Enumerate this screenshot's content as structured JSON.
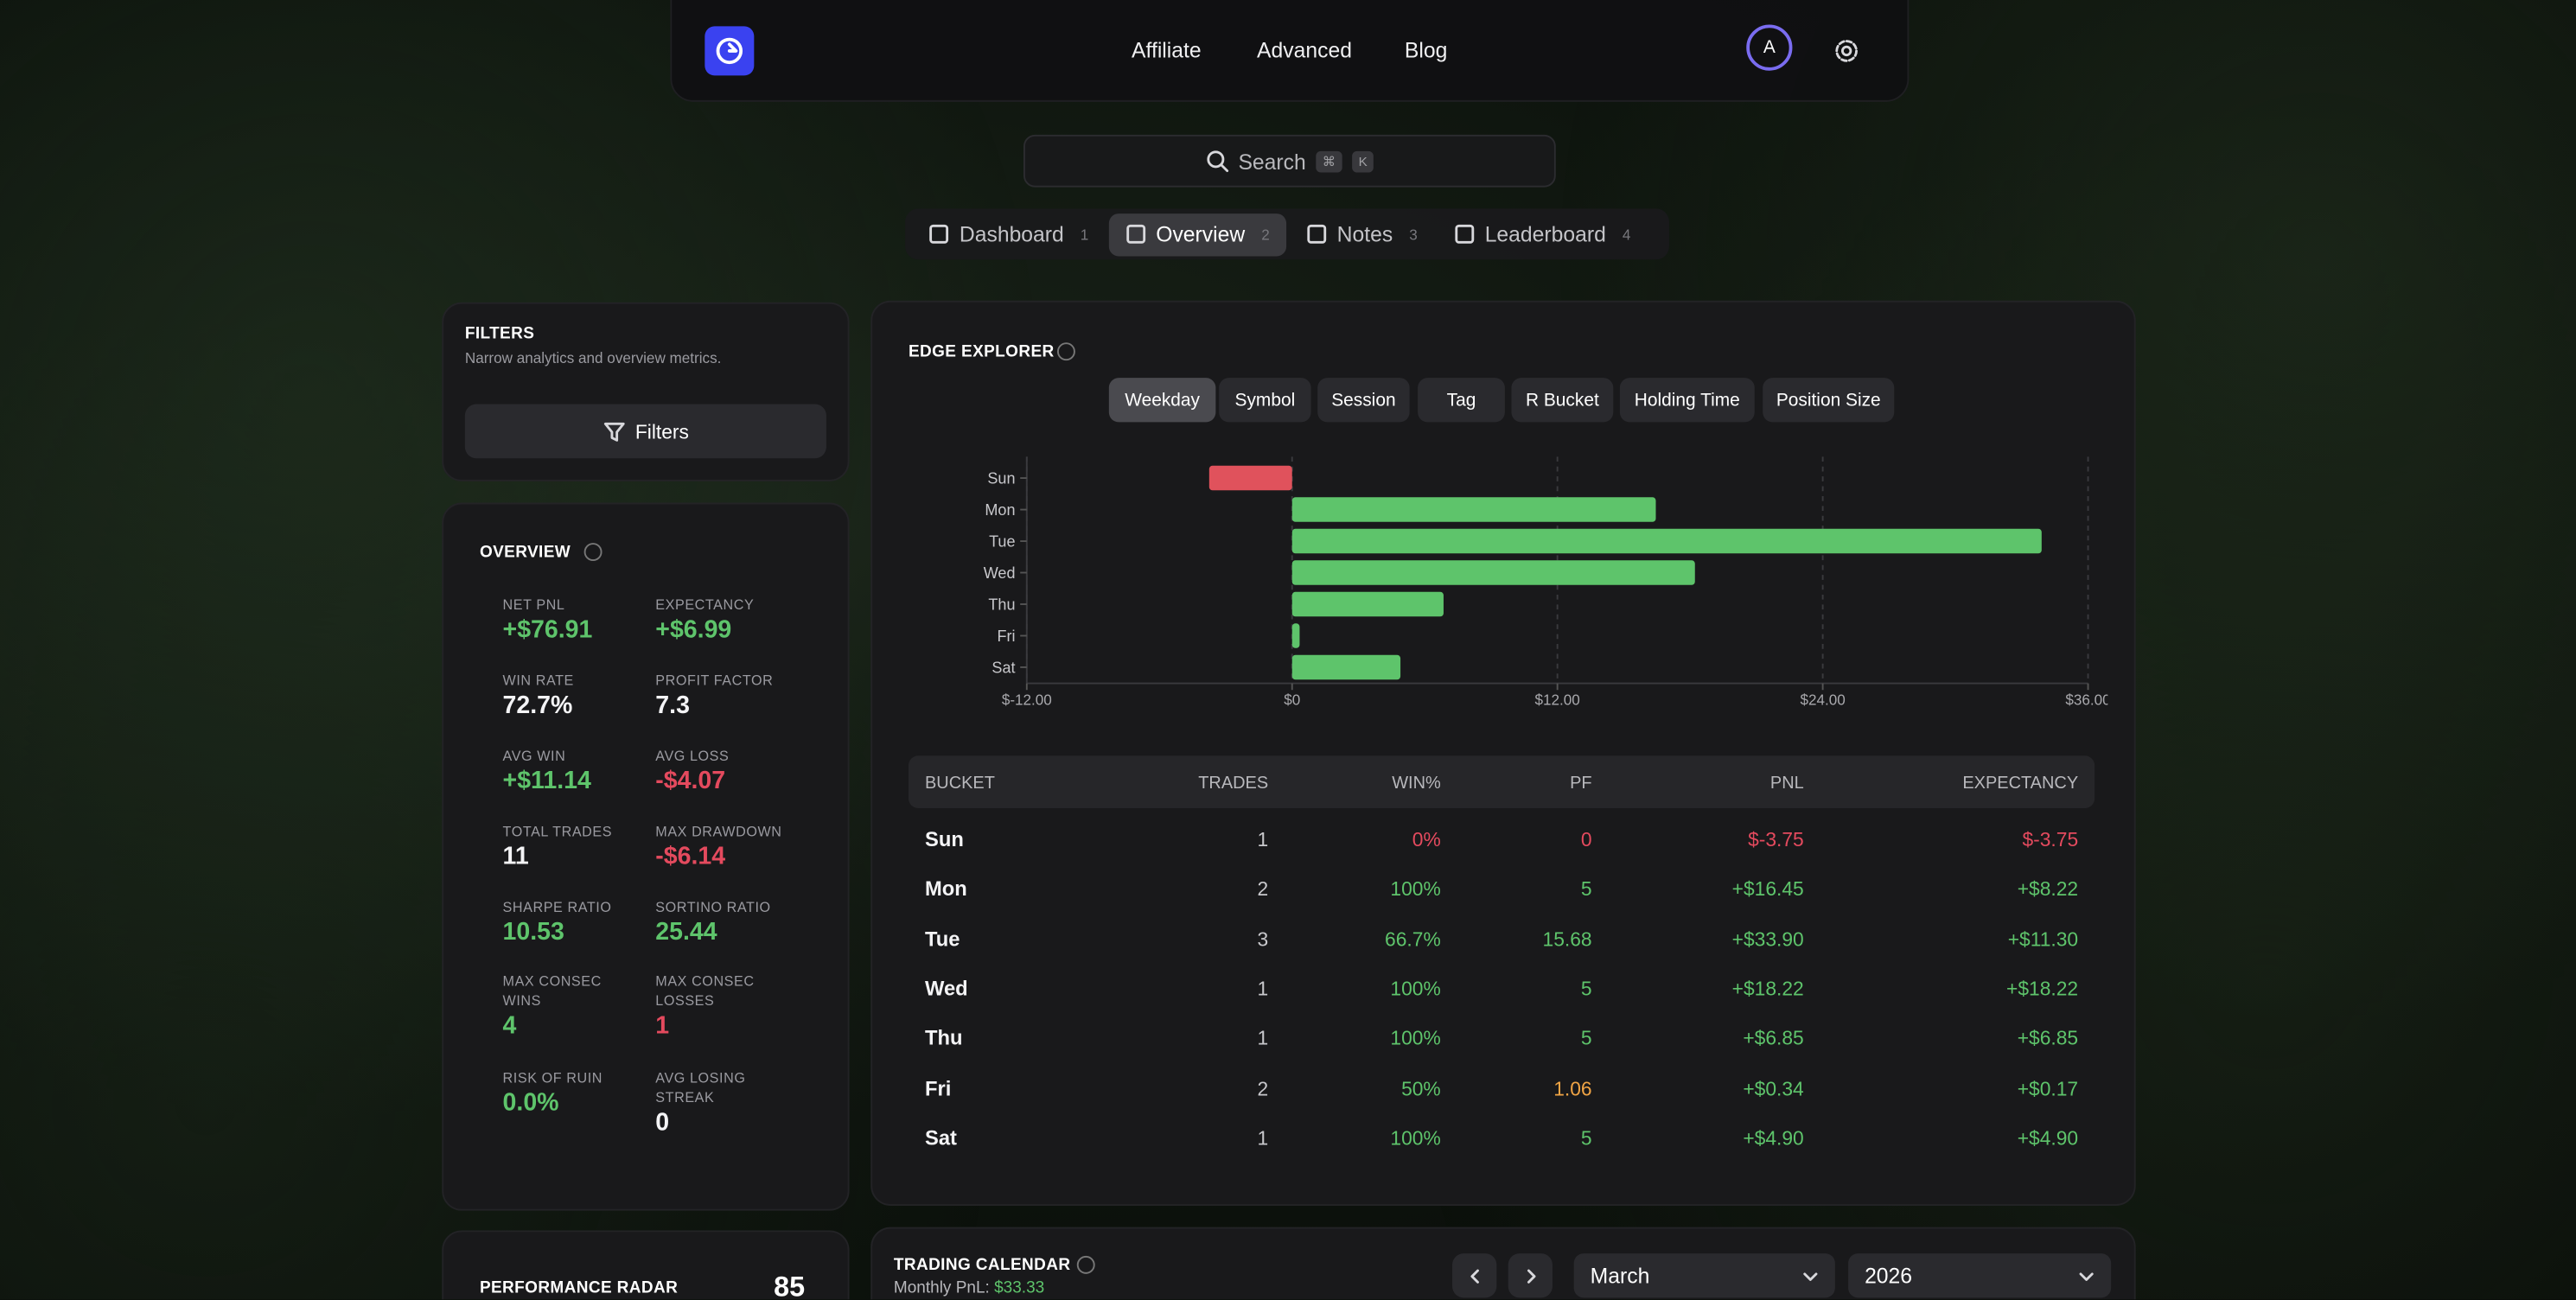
{
  "nav": {
    "links": [
      "Affiliate",
      "Advanced",
      "Blog"
    ],
    "avatar": "A"
  },
  "search": {
    "placeholder": "Search",
    "shortcut": [
      "⌘",
      "K"
    ]
  },
  "tabs": [
    {
      "label": "Dashboard",
      "key": "1"
    },
    {
      "label": "Overview",
      "key": "2"
    },
    {
      "label": "Notes",
      "key": "3"
    },
    {
      "label": "Leaderboard",
      "key": "4"
    }
  ],
  "filters": {
    "title": "FILTERS",
    "subtitle": "Narrow analytics and overview metrics.",
    "button": "Filters"
  },
  "overview": {
    "title": "OVERVIEW",
    "metrics": [
      {
        "label": "NET PNL",
        "value": "+$76.91"
      },
      {
        "label": "EXPECTANCY",
        "value": "+$6.99"
      },
      {
        "label": "WIN RATE",
        "value": "72.7%"
      },
      {
        "label": "PROFIT FACTOR",
        "value": "7.3"
      },
      {
        "label": "AVG WIN",
        "value": "+$11.14"
      },
      {
        "label": "AVG LOSS",
        "value": "-$4.07"
      },
      {
        "label": "TOTAL TRADES",
        "value": "11"
      },
      {
        "label": "MAX DRAWDOWN",
        "value": "-$6.14"
      },
      {
        "label": "SHARPE RATIO",
        "value": "10.53"
      },
      {
        "label": "SORTINO RATIO",
        "value": "25.44"
      },
      {
        "label": "MAX CONSEC WINS",
        "value": "4"
      },
      {
        "label": "MAX CONSEC LOSSES",
        "value": "1"
      },
      {
        "label": "RISK OF RUIN",
        "value": "0.0%"
      },
      {
        "label": "AVG LOSING STREAK",
        "value": "0"
      }
    ]
  },
  "performance_radar": {
    "title": "PERFORMANCE RADAR",
    "score": "85"
  },
  "edge_explorer": {
    "title": "EDGE EXPLORER",
    "groupings": [
      "Weekday",
      "Symbol",
      "Session",
      "Tag",
      "R Bucket",
      "Holding Time",
      "Position Size"
    ],
    "table": {
      "columns": [
        "BUCKET",
        "TRADES",
        "WIN%",
        "PF",
        "PNL",
        "EXPECTANCY"
      ],
      "rows": [
        [
          "Sun",
          "1",
          "0%",
          "0",
          "$-3.75",
          "$-3.75"
        ],
        [
          "Mon",
          "2",
          "100%",
          "5",
          "+$16.45",
          "+$8.22"
        ],
        [
          "Tue",
          "3",
          "66.7%",
          "15.68",
          "+$33.90",
          "+$11.30"
        ],
        [
          "Wed",
          "1",
          "100%",
          "5",
          "+$18.22",
          "+$18.22"
        ],
        [
          "Thu",
          "1",
          "100%",
          "5",
          "+$6.85",
          "+$6.85"
        ],
        [
          "Fri",
          "2",
          "50%",
          "1.06",
          "+$0.34",
          "+$0.17"
        ],
        [
          "Sat",
          "1",
          "100%",
          "5",
          "+$4.90",
          "+$4.90"
        ]
      ]
    }
  },
  "chart_data": {
    "type": "bar",
    "orientation": "horizontal",
    "categories": [
      "Sun",
      "Mon",
      "Tue",
      "Wed",
      "Thu",
      "Fri",
      "Sat"
    ],
    "values": [
      -3.75,
      16.45,
      33.9,
      18.22,
      6.85,
      0.34,
      4.9
    ],
    "colors": {
      "positive": "#5ec46b",
      "negative": "#e0525c"
    },
    "xlim": [
      -12,
      36
    ],
    "xticks": [
      {
        "value": -12,
        "label": "$-12.00"
      },
      {
        "value": 0,
        "label": "$0"
      },
      {
        "value": 12,
        "label": "$12.00"
      },
      {
        "value": 24,
        "label": "$24.00"
      },
      {
        "value": 36,
        "label": "$36.00"
      }
    ],
    "grid": true
  },
  "trading_calendar": {
    "title": "TRADING CALENDAR",
    "monthly_pnl_label": "Monthly PnL:",
    "monthly_pnl": "$33.33",
    "month": "March",
    "year": "2026"
  }
}
